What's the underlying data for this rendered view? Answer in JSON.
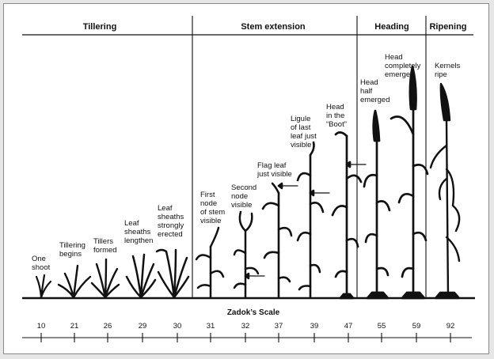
{
  "stages": [
    {
      "label": "Tillering"
    },
    {
      "label": "Stem extension"
    },
    {
      "label": "Heading"
    },
    {
      "label": "Ripening"
    }
  ],
  "growth_steps": [
    {
      "lines": [
        "One",
        "shoot"
      ],
      "zadok": "10"
    },
    {
      "lines": [
        "Tillering",
        "begins"
      ],
      "zadok": "21"
    },
    {
      "lines": [
        "Tillers",
        "formed"
      ],
      "zadok": "26"
    },
    {
      "lines": [
        "Leaf",
        "sheaths",
        "lengthen"
      ],
      "zadok": "29"
    },
    {
      "lines": [
        "Leaf",
        "sheaths",
        "strongly",
        "erected"
      ],
      "zadok": "30"
    },
    {
      "lines": [
        "First",
        "node",
        "of stem",
        "visible"
      ],
      "zadok": "31"
    },
    {
      "lines": [
        "Second",
        "node",
        "visible"
      ],
      "zadok": "32"
    },
    {
      "lines": [
        "Flag leaf",
        "just visible"
      ],
      "zadok": "37"
    },
    {
      "lines": [
        "Ligule",
        "of last",
        "leaf just",
        "visible"
      ],
      "zadok": "39"
    },
    {
      "lines": [
        "Head",
        "in the",
        "“Boot”"
      ],
      "zadok": "47"
    },
    {
      "lines": [
        "Head",
        "half",
        "emerged"
      ],
      "zadok": "55"
    },
    {
      "lines": [
        "Head",
        "completely",
        "emerged"
      ],
      "zadok": "59"
    },
    {
      "lines": [
        "Kernels",
        "ripe"
      ],
      "zadok": "92"
    }
  ],
  "scale": {
    "title": "Zadok’s Scale"
  }
}
